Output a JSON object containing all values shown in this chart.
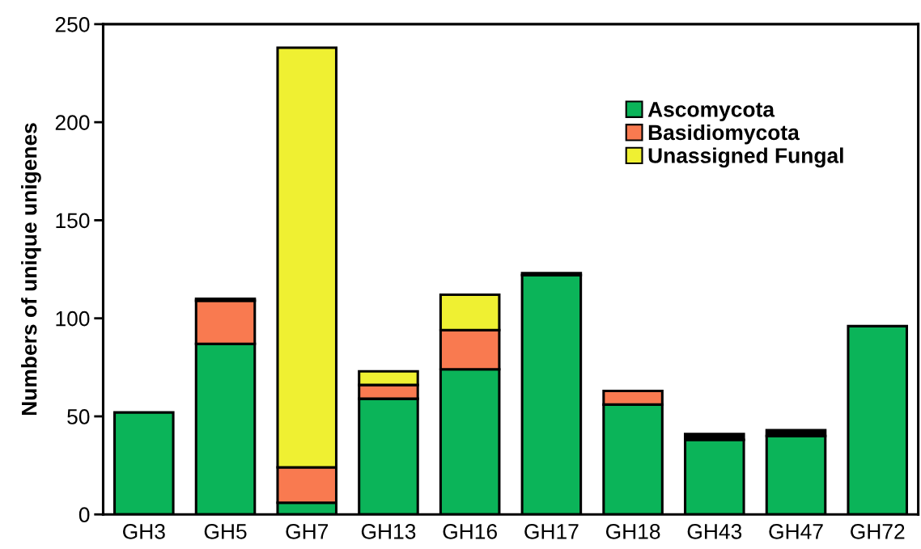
{
  "chart_data": {
    "type": "bar",
    "stacked": true,
    "ylabel": "Numbers of unique unigenes",
    "categories": [
      "GH3",
      "GH5",
      "GH7",
      "GH13",
      "GH16",
      "GH17",
      "GH18",
      "GH43",
      "GH47",
      "GH72"
    ],
    "series": [
      {
        "name": "Ascomycota",
        "color": "#0bb459",
        "values": [
          52,
          87,
          6,
          59,
          74,
          122,
          56,
          38,
          40,
          96
        ]
      },
      {
        "name": "Basidiomycota",
        "color": "#f97a50",
        "values": [
          null,
          22,
          18,
          7,
          20,
          null,
          7,
          null,
          null,
          null
        ]
      },
      {
        "name": "Unassigned Fungal",
        "color": "#eff032",
        "values": [
          null,
          null,
          214,
          7,
          18,
          null,
          null,
          null,
          null,
          null
        ]
      },
      {
        "color": "#000000",
        "values": [
          null,
          1,
          null,
          null,
          null,
          1,
          null,
          3,
          3,
          null
        ]
      }
    ],
    "ylim": [
      0,
      250
    ],
    "yticks": [
      0,
      50,
      100,
      150,
      200,
      250
    ],
    "grid": false,
    "legend": "top right"
  }
}
